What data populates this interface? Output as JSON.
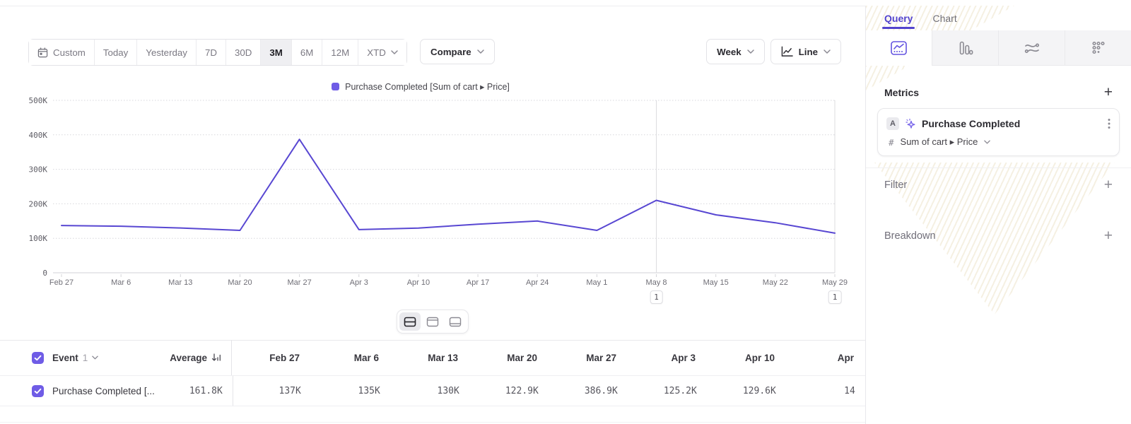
{
  "colors": {
    "accent_purple": "#5847d2",
    "legend_swatch": "#6f5ce6",
    "checkbox": "#6f5ce6",
    "active_tab": "#5243cd"
  },
  "toolbar": {
    "date_ranges": [
      {
        "label": "Custom",
        "icon": "calendar-icon",
        "active": false
      },
      {
        "label": "Today",
        "active": false
      },
      {
        "label": "Yesterday",
        "active": false
      },
      {
        "label": "7D",
        "active": false
      },
      {
        "label": "30D",
        "active": false
      },
      {
        "label": "3M",
        "active": true
      },
      {
        "label": "6M",
        "active": false
      },
      {
        "label": "12M",
        "active": false
      },
      {
        "label": "XTD",
        "active": false,
        "has_chevron": true
      }
    ],
    "compare_label": "Compare",
    "granularity_label": "Week",
    "chart_type_label": "Line"
  },
  "legend": {
    "label": "Purchase Completed [Sum of cart ▸ Price]"
  },
  "chart_data": {
    "type": "line",
    "x": [
      "Feb 27",
      "Mar 6",
      "Mar 13",
      "Mar 20",
      "Mar 27",
      "Apr 3",
      "Apr 10",
      "Apr 17",
      "Apr 24",
      "May 1",
      "May 8",
      "May 15",
      "May 22",
      "May 29"
    ],
    "series": [
      {
        "name": "Purchase Completed [Sum of cart ▸ Price]",
        "color": "#5847d2",
        "values": [
          137000,
          135000,
          130000,
          122900,
          386900,
          125200,
          129600,
          141000,
          150000,
          123000,
          210000,
          168000,
          145000,
          115000
        ]
      }
    ],
    "ylim": [
      0,
      500000
    ],
    "ytick_labels": [
      "0",
      "100K",
      "200K",
      "300K",
      "400K",
      "500K"
    ],
    "grid": true,
    "legend_position": "top",
    "annotations": [
      {
        "x_index": 10,
        "label": "1"
      },
      {
        "x_index": 13,
        "label": "1"
      }
    ]
  },
  "view_toggles": [
    {
      "name": "split-view",
      "active": true
    },
    {
      "name": "chart-only-view",
      "active": false
    },
    {
      "name": "table-only-view",
      "active": false
    }
  ],
  "table": {
    "event_label": "Event",
    "event_count": "1",
    "average_label": "Average",
    "columns": [
      "Feb 27",
      "Mar 6",
      "Mar 13",
      "Mar 20",
      "Mar 27",
      "Apr 3",
      "Apr 10",
      "Apr"
    ],
    "rows": [
      {
        "name": "Purchase Completed [...",
        "average": "161.8K",
        "values": [
          "137K",
          "135K",
          "130K",
          "122.9K",
          "386.9K",
          "125.2K",
          "129.6K",
          "14"
        ]
      }
    ]
  },
  "sidebar": {
    "tabs": [
      {
        "label": "Query",
        "active": true
      },
      {
        "label": "Chart",
        "active": false
      }
    ],
    "chart_type_tabs": [
      "insights",
      "funnels",
      "flows",
      "retention"
    ],
    "metrics": {
      "title": "Metrics",
      "card": {
        "badge": "A",
        "event_name": "Purchase Completed",
        "aggregation_prefix": "#",
        "aggregation": "Sum of cart ▸ Price"
      }
    },
    "sections": [
      {
        "label": "Filter"
      },
      {
        "label": "Breakdown"
      }
    ]
  }
}
